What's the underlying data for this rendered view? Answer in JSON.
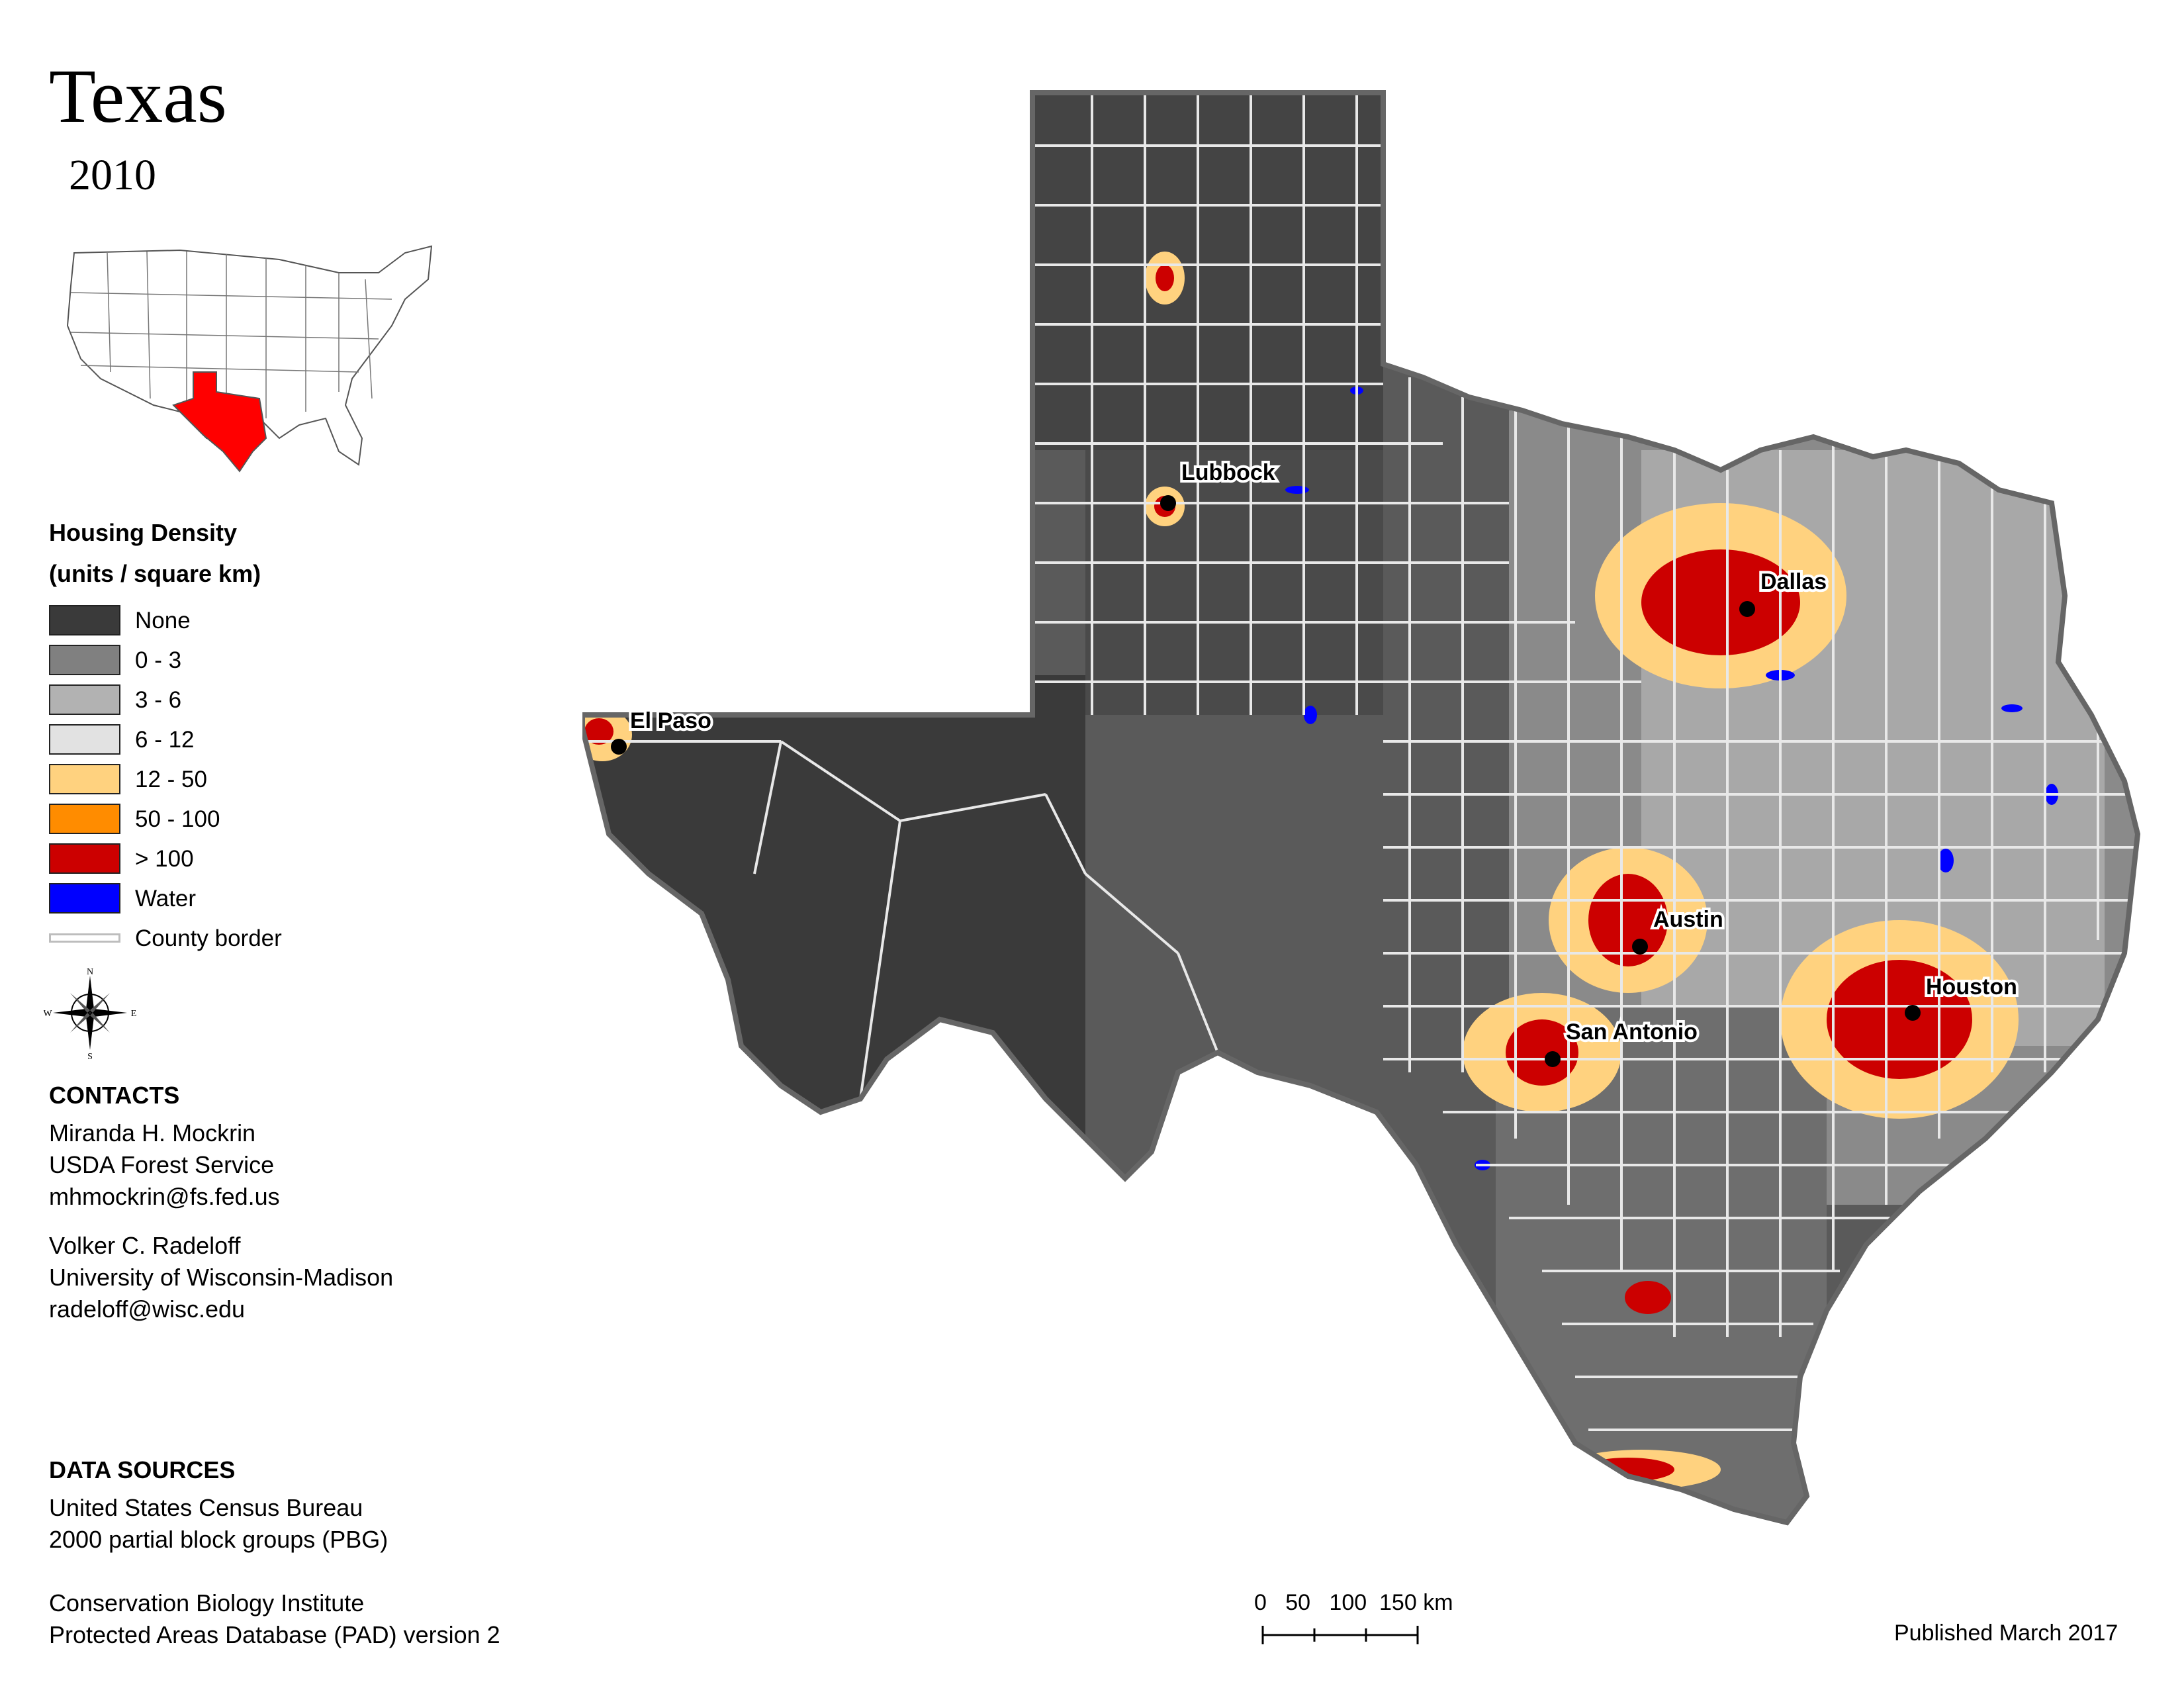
{
  "header": {
    "title": "Texas",
    "year": "2010"
  },
  "inset": {
    "highlight_color": "#ff0000",
    "state_fill": "#ffffff"
  },
  "legend": {
    "title_line1": "Housing Density",
    "title_line2": "(units / square km)",
    "items": [
      {
        "label": "None",
        "color": "#3a3a3a"
      },
      {
        "label": "0 - 3",
        "color": "#808080"
      },
      {
        "label": "3 - 6",
        "color": "#b2b2b2"
      },
      {
        "label": "6 - 12",
        "color": "#e2e2e2"
      },
      {
        "label": "12 - 50",
        "color": "#ffd27f"
      },
      {
        "label": "50 - 100",
        "color": "#ff8c00"
      },
      {
        "label": "> 100",
        "color": "#cc0000"
      },
      {
        "label": "Water",
        "color": "#0000ff"
      }
    ],
    "county_border_label": "County border"
  },
  "compass": {
    "n": "N",
    "s": "S",
    "e": "E",
    "w": "W"
  },
  "contacts": {
    "heading": "CONTACTS",
    "people": [
      {
        "name": "Miranda H. Mockrin",
        "org": "USDA Forest Service",
        "email": "mhmockrin@fs.fed.us"
      },
      {
        "name": "Volker C. Radeloff",
        "org": "University of Wisconsin-Madison",
        "email": "radeloff@wisc.edu"
      }
    ]
  },
  "data_sources": {
    "heading": "DATA SOURCES",
    "line1": "United States Census Bureau",
    "line2": "2000 partial block groups (PBG)",
    "line3": "Conservation Biology Institute",
    "line4": "Protected Areas Database (PAD) version 2"
  },
  "cities": [
    {
      "name": "Lubbock"
    },
    {
      "name": "Dallas"
    },
    {
      "name": "El Paso"
    },
    {
      "name": "Austin"
    },
    {
      "name": "Houston"
    },
    {
      "name": "San Antonio"
    }
  ],
  "scale_bar": {
    "labels": "0   50   100  150 km"
  },
  "footer": {
    "published": "Published March 2017"
  }
}
